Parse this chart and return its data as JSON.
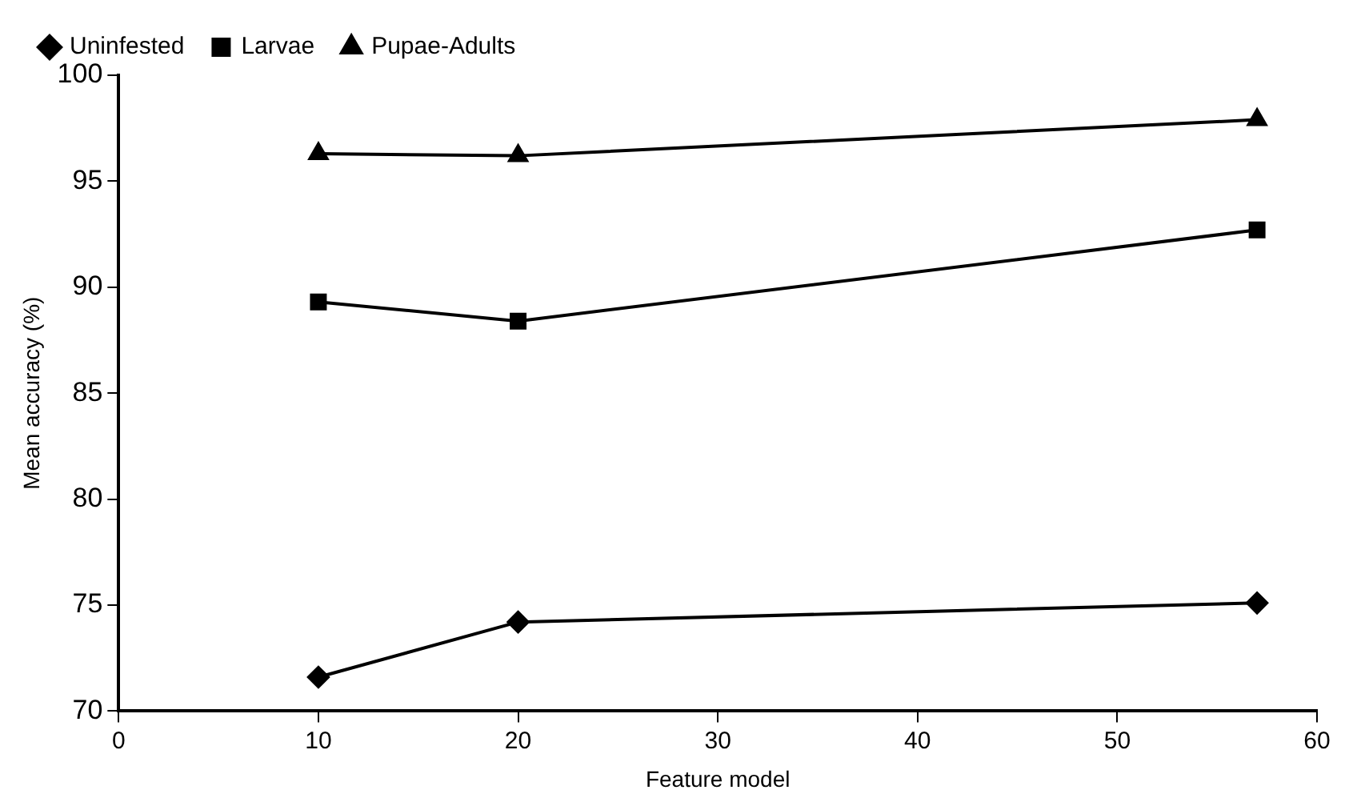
{
  "chart_data": {
    "type": "line",
    "xlabel": "Feature model",
    "ylabel": "Mean accuracy (%)",
    "x": [
      10,
      20,
      57
    ],
    "series": [
      {
        "name": "Uninfested",
        "color": "#000000",
        "marker": "diamond",
        "values": [
          71.6,
          74.2,
          75.1
        ]
      },
      {
        "name": "Larvae",
        "color": "#000000",
        "marker": "square",
        "values": [
          89.3,
          88.4,
          92.7
        ]
      },
      {
        "name": "Pupae-Adults",
        "color": "#000000",
        "marker": "triangle",
        "values": [
          96.3,
          96.2,
          97.9
        ]
      }
    ],
    "xlim": [
      0,
      60
    ],
    "xticks": [
      0,
      10,
      20,
      30,
      40,
      50,
      60
    ],
    "ylim": [
      70,
      100
    ],
    "yticks": [
      70,
      75,
      80,
      85,
      90,
      95,
      100
    ],
    "grid": false,
    "legend": "top left",
    "line_style": "solid"
  }
}
